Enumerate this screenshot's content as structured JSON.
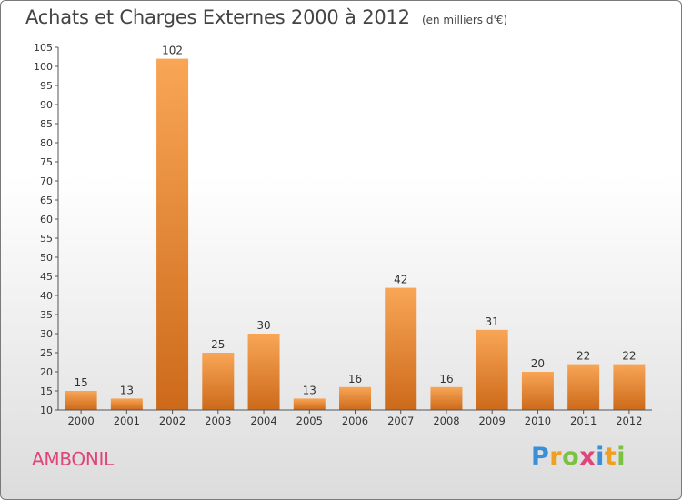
{
  "header": {
    "title": "Achats et Charges Externes 2000 à 2012",
    "unit": "(en milliers d'€)"
  },
  "footer": {
    "commune": "AMBONIL",
    "logo_letters": [
      {
        "char": "P",
        "color": "#3a8fd6"
      },
      {
        "char": "r",
        "color": "#f0a020"
      },
      {
        "char": "o",
        "color": "#7cc242"
      },
      {
        "char": "x",
        "color": "#e0457a"
      },
      {
        "char": "i",
        "color": "#3a8fd6"
      },
      {
        "char": "t",
        "color": "#f0a020"
      },
      {
        "char": "i",
        "color": "#7cc242"
      }
    ]
  },
  "chart_data": {
    "type": "bar",
    "title": "Achats et Charges Externes 2000 à 2012",
    "unit": "(en milliers d'€)",
    "categories": [
      "2000",
      "2001",
      "2002",
      "2003",
      "2004",
      "2005",
      "2006",
      "2007",
      "2008",
      "2009",
      "2010",
      "2011",
      "2012"
    ],
    "values": [
      15,
      13,
      102,
      25,
      30,
      13,
      16,
      42,
      16,
      31,
      20,
      22,
      22
    ],
    "ylim": [
      10,
      105
    ],
    "yticks": [
      10,
      15,
      20,
      25,
      30,
      35,
      40,
      45,
      50,
      55,
      60,
      65,
      70,
      75,
      80,
      85,
      90,
      95,
      100,
      105
    ],
    "grid": false,
    "bar_color_light": "#f8a656",
    "bar_color_dark": "#cc6a1a",
    "axis_color": "#555555"
  }
}
